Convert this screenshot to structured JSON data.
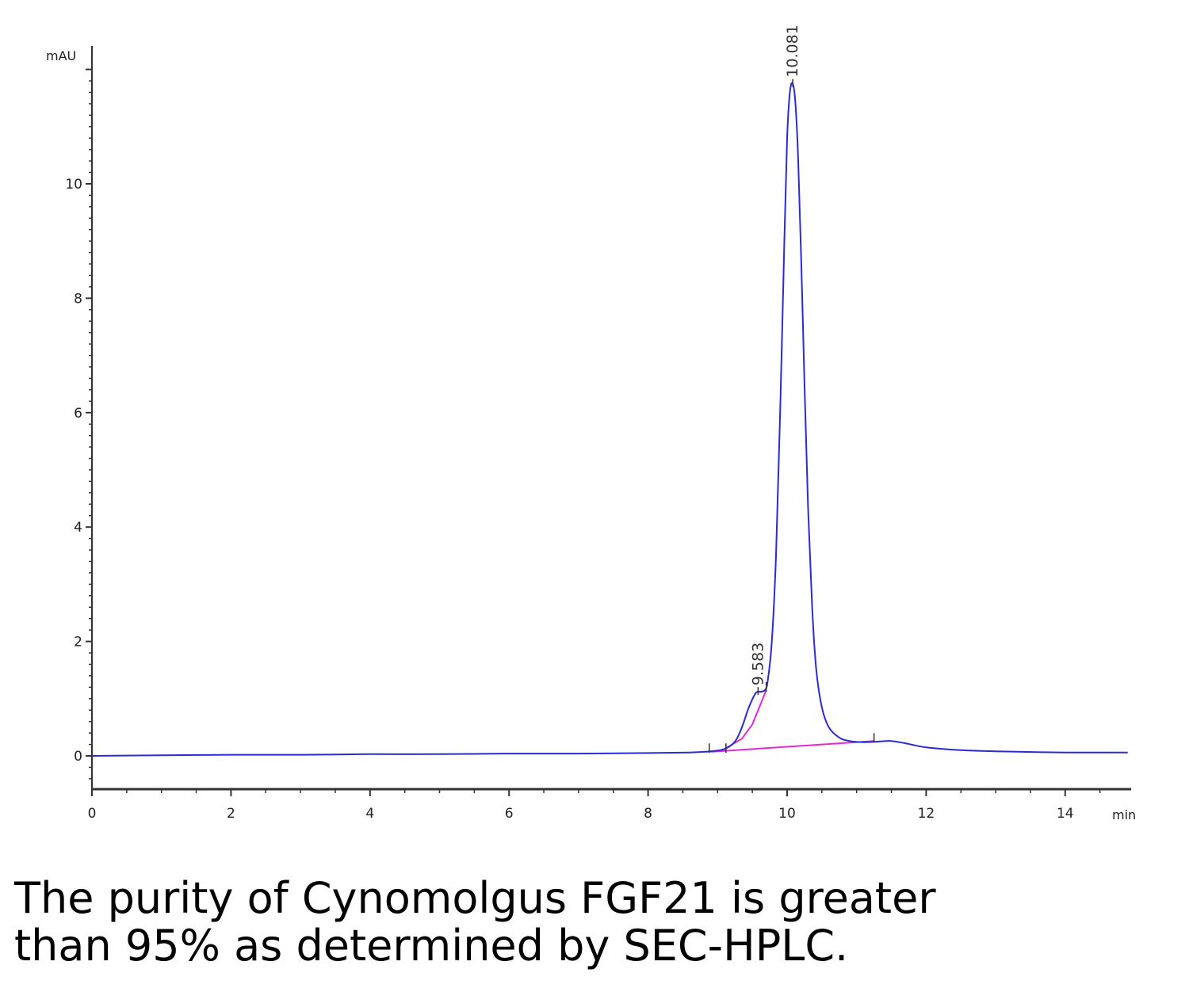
{
  "chart_data": {
    "type": "line",
    "ylabel": "mAU",
    "xlabel": "min",
    "xlim": [
      0,
      14.9
    ],
    "ylim": [
      -0.6,
      12.2
    ],
    "xticks": [
      0,
      2,
      4,
      6,
      8,
      10,
      12,
      14
    ],
    "yticks": [
      0,
      2,
      4,
      6,
      8,
      10
    ],
    "grid": false,
    "colors": {
      "signal": "#2b2bd6",
      "baseline": "#e02ad8",
      "axis": "#333333"
    },
    "series": [
      {
        "values_description_free": true,
        "x": [
          0,
          1,
          2,
          3,
          4,
          5,
          6,
          7,
          8,
          8.6,
          8.9,
          9.1,
          9.25,
          9.35,
          9.45,
          9.55,
          9.62,
          9.68,
          9.72,
          9.78,
          9.84,
          9.9,
          9.96,
          10.0,
          10.04,
          10.081,
          10.12,
          10.16,
          10.2,
          10.25,
          10.3,
          10.36,
          10.42,
          10.5,
          10.6,
          10.75,
          10.9,
          11.1,
          11.3,
          11.5,
          11.7,
          12.0,
          12.5,
          13.0,
          14.0,
          14.9
        ],
        "y": [
          0.0,
          0.01,
          0.02,
          0.02,
          0.03,
          0.03,
          0.04,
          0.04,
          0.05,
          0.06,
          0.08,
          0.12,
          0.25,
          0.5,
          0.85,
          1.1,
          1.12,
          1.15,
          1.3,
          2.0,
          3.5,
          6.0,
          9.0,
          10.8,
          11.6,
          11.75,
          11.4,
          10.4,
          8.8,
          6.5,
          4.4,
          2.6,
          1.5,
          0.85,
          0.5,
          0.32,
          0.26,
          0.24,
          0.25,
          0.26,
          0.22,
          0.15,
          0.1,
          0.08,
          0.06,
          0.06
        ]
      }
    ],
    "baselines": [
      {
        "x": [
          8.9,
          11.25
        ],
        "y": [
          0.07,
          0.26
        ]
      },
      {
        "x": [
          9.1,
          9.35,
          9.5,
          9.6,
          9.7
        ],
        "y": [
          0.12,
          0.3,
          0.55,
          0.85,
          1.15
        ]
      }
    ],
    "peaks": [
      {
        "label": "9.583",
        "x": 9.583,
        "y": 1.12
      },
      {
        "label": "10.081",
        "x": 10.081,
        "y": 11.75
      }
    ],
    "integration_marks": [
      8.88,
      9.12,
      9.7,
      11.25
    ]
  },
  "caption": {
    "line1": "The purity of Cynomolgus FGF21 is greater",
    "line2": "than 95% as determined by SEC-HPLC."
  }
}
